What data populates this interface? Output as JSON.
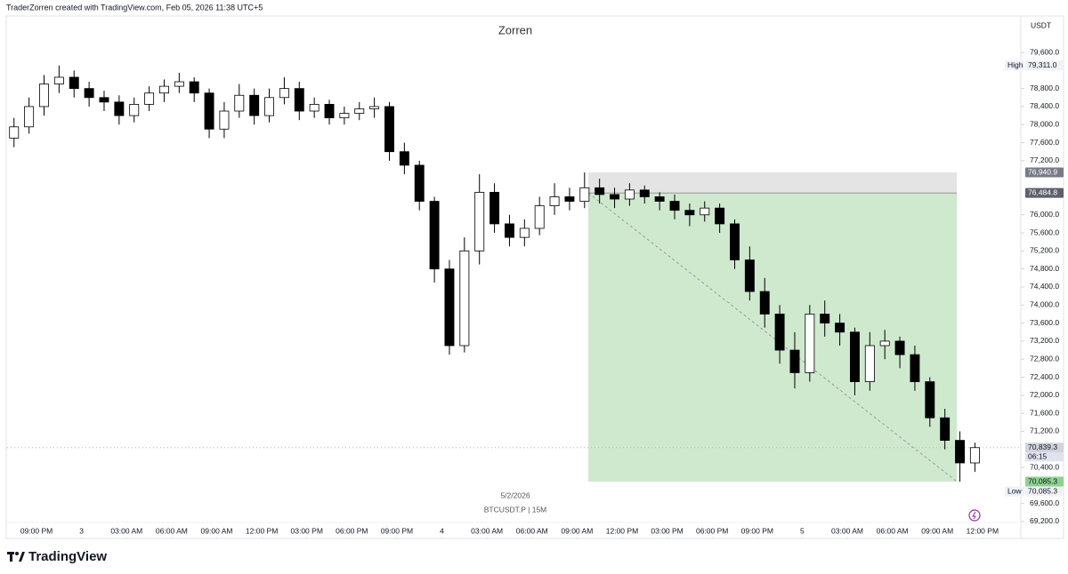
{
  "chart_data": {
    "type": "candlestick",
    "header": "TraderZorren created with TradingView.com, Feb 05, 2026 11:38 UTC+5",
    "title": "Zorren",
    "currency": "USDT",
    "date_label": "5/2/2026",
    "symbol_label": "BTCUSDT.P | 15M",
    "brand": "TradingView",
    "up_color": "#ffffff",
    "down_color": "#000000",
    "x": [
      -1.5,
      -0.5,
      0.5,
      1.5,
      2.5,
      3.5,
      4.5,
      5.5,
      6.5,
      7.5,
      8.5,
      9.5,
      10.5,
      11.5,
      12.5,
      13.5,
      14.5,
      15.5,
      16.5,
      17.5,
      18.5,
      19.5,
      20.5,
      21.5,
      22.5,
      23.5,
      24.5,
      25.5,
      26.5,
      27.5,
      28.5,
      29.5,
      30.5,
      31.5,
      32.5,
      33.5,
      34.5,
      35.5,
      36.5,
      37.5,
      38.5,
      39.5,
      40.5,
      41.5,
      42.5,
      43.5,
      44.5,
      45.5,
      46.5,
      47.5,
      48.5,
      49.5,
      50.5,
      51.5,
      52.5,
      53.5,
      54.5,
      55.5,
      56.5,
      57.5,
      58.5,
      59.5,
      60.5,
      61.5,
      62.5
    ],
    "open": [
      77700,
      77950,
      78400,
      78900,
      79050,
      78800,
      78600,
      78500,
      78200,
      78450,
      78700,
      78850,
      78950,
      78700,
      77900,
      78300,
      78650,
      78200,
      78600,
      78800,
      78300,
      78450,
      78150,
      78250,
      78350,
      78400,
      77400,
      77100,
      76300,
      74800,
      73100,
      75200,
      76500,
      75800,
      75500,
      75700,
      76200,
      76400,
      76300,
      76600,
      76450,
      76350,
      76550,
      76400,
      76300,
      76100,
      76000,
      76150,
      75800,
      75000,
      74300,
      73800,
      73000,
      72500,
      73800,
      73600,
      73400,
      72300,
      73100,
      73200,
      72900,
      72300,
      71500,
      71000,
      70500
    ],
    "high": [
      78150,
      78600,
      79100,
      79311,
      79200,
      78950,
      78750,
      78650,
      78600,
      78850,
      79000,
      79150,
      79050,
      78800,
      78500,
      78900,
      78800,
      78800,
      79050,
      78950,
      78600,
      78550,
      78400,
      78500,
      78600,
      78500,
      77600,
      77200,
      76400,
      75000,
      75500,
      76900,
      76700,
      76000,
      75900,
      76400,
      76700,
      76600,
      76940,
      76800,
      76600,
      76700,
      76650,
      76500,
      76450,
      76250,
      76300,
      76250,
      75900,
      75300,
      74600,
      74000,
      73400,
      74000,
      74100,
      73800,
      73500,
      73400,
      73450,
      73300,
      73100,
      72400,
      71700,
      71200,
      70950
    ],
    "low": [
      77500,
      77800,
      78200,
      78700,
      78600,
      78400,
      78300,
      78000,
      78050,
      78300,
      78500,
      78700,
      78500,
      77700,
      77700,
      78150,
      78000,
      78050,
      78450,
      78100,
      78150,
      78000,
      78000,
      78100,
      78150,
      77200,
      76900,
      76100,
      74500,
      72900,
      72950,
      74900,
      75600,
      75300,
      75300,
      75550,
      76000,
      76100,
      76150,
      76250,
      76150,
      76200,
      76250,
      76100,
      75900,
      75750,
      75850,
      75600,
      74800,
      74100,
      73500,
      72700,
      72150,
      72300,
      73300,
      73100,
      72000,
      72100,
      72800,
      72600,
      72100,
      71300,
      70800,
      70085.3,
      70300
    ],
    "close": [
      77950,
      78400,
      78900,
      79050,
      78800,
      78600,
      78500,
      78200,
      78450,
      78700,
      78850,
      78950,
      78700,
      77900,
      78300,
      78650,
      78200,
      78600,
      78800,
      78300,
      78450,
      78150,
      78250,
      78350,
      78400,
      77400,
      77100,
      76300,
      74800,
      73100,
      75200,
      76500,
      75800,
      75500,
      75700,
      76200,
      76400,
      76300,
      76600,
      76450,
      76350,
      76550,
      76400,
      76300,
      76100,
      76000,
      76150,
      75800,
      75000,
      74300,
      73800,
      73000,
      72500,
      73800,
      73600,
      73400,
      72300,
      73100,
      73200,
      72900,
      72300,
      71500,
      71000,
      70500,
      70839.3
    ],
    "xlim": [
      -1.96,
      65.44
    ],
    "ylim": [
      68845,
      80408
    ],
    "xticks": [
      {
        "value": 0,
        "label": "09:00 PM"
      },
      {
        "value": 3,
        "label": "3"
      },
      {
        "value": 6,
        "label": "03:00 AM"
      },
      {
        "value": 9,
        "label": "06:00 AM"
      },
      {
        "value": 12,
        "label": "09:00 AM"
      },
      {
        "value": 15,
        "label": "12:00 PM"
      },
      {
        "value": 18,
        "label": "03:00 PM"
      },
      {
        "value": 21,
        "label": "06:00 PM"
      },
      {
        "value": 24,
        "label": "09:00 PM"
      },
      {
        "value": 27,
        "label": "4"
      },
      {
        "value": 30,
        "label": "03:00 AM"
      },
      {
        "value": 33,
        "label": "06:00 AM"
      },
      {
        "value": 36,
        "label": "09:00 AM"
      },
      {
        "value": 39,
        "label": "12:00 PM"
      },
      {
        "value": 42,
        "label": "03:00 PM"
      },
      {
        "value": 45,
        "label": "06:00 PM"
      },
      {
        "value": 48,
        "label": "09:00 PM"
      },
      {
        "value": 51,
        "label": "5"
      },
      {
        "value": 54,
        "label": "03:00 AM"
      },
      {
        "value": 57,
        "label": "06:00 AM"
      },
      {
        "value": 60,
        "label": "09:00 AM"
      },
      {
        "value": 63,
        "label": "12:00 PM"
      }
    ],
    "yticks": [
      {
        "value": 69200,
        "label": "69,200.0"
      },
      {
        "value": 69600,
        "label": "69,600.0"
      },
      {
        "value": 70400,
        "label": "70,400.0"
      },
      {
        "value": 71200,
        "label": "71,200.0"
      },
      {
        "value": 71600,
        "label": "71,600.0"
      },
      {
        "value": 72000,
        "label": "72,000.0"
      },
      {
        "value": 72400,
        "label": "72,400.0"
      },
      {
        "value": 72800,
        "label": "72,800.0"
      },
      {
        "value": 73200,
        "label": "73,200.0"
      },
      {
        "value": 73600,
        "label": "73,600.0"
      },
      {
        "value": 74000,
        "label": "74,000.0"
      },
      {
        "value": 74400,
        "label": "74,400.0"
      },
      {
        "value": 74800,
        "label": "74,800.0"
      },
      {
        "value": 75200,
        "label": "75,200.0"
      },
      {
        "value": 75600,
        "label": "75,600.0"
      },
      {
        "value": 76000,
        "label": "76,000.0"
      },
      {
        "value": 77200,
        "label": "77,200.0"
      },
      {
        "value": 77600,
        "label": "77,600.0"
      },
      {
        "value": 78000,
        "label": "78,000.0"
      },
      {
        "value": 78400,
        "label": "78,400.0"
      },
      {
        "value": 78800,
        "label": "78,800.0"
      },
      {
        "value": 79600,
        "label": "79,600.0"
      }
    ],
    "grid": false,
    "markers": [
      {
        "name": "High",
        "value": 79311,
        "value_label": "79,311.0"
      },
      {
        "name": "Low",
        "value": 70085.3,
        "value_label": "70,085.3"
      }
    ],
    "position": {
      "entry": 76484.8,
      "entry_label": "76,484.8",
      "stop": 76940.9,
      "stop_label": "76,940.9",
      "target": 70085.3,
      "target_label": "70,085.3",
      "start": 36.75,
      "end": 61.3,
      "stop_color": "#e4e4e4",
      "target_color": "#cfe9cf"
    },
    "last_price": {
      "value": 70839.3,
      "label": "70,839.3",
      "countdown": "06:15"
    }
  }
}
